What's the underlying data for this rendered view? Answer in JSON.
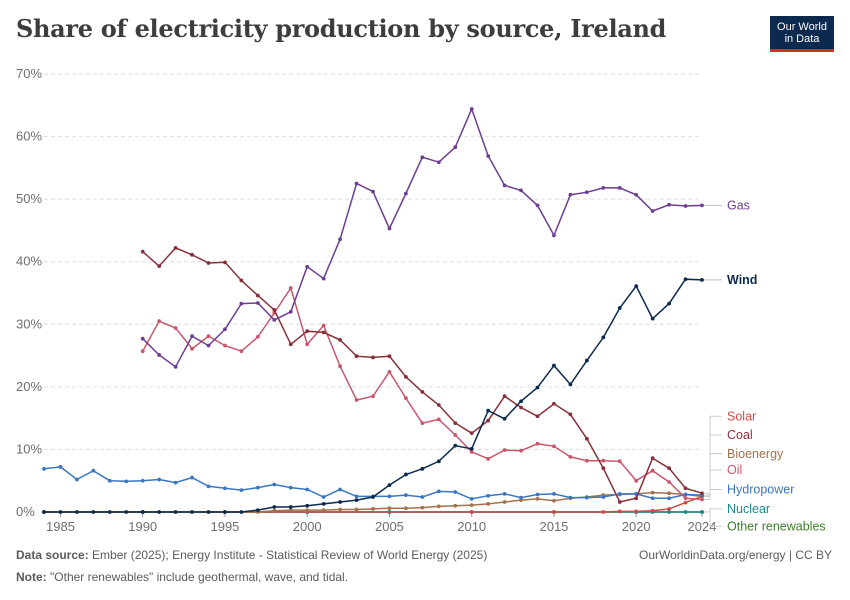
{
  "header": {
    "title": "Share of electricity production by source, Ireland",
    "logo_line1": "Our World",
    "logo_line2": "in Data"
  },
  "footer": {
    "source_label": "Data source:",
    "source_text": "Ember (2025); Energy Institute - Statistical Review of World Energy (2025)",
    "note_label": "Note:",
    "note_text": "\"Other renewables\" include geothermal, wave, and tidal.",
    "credit": "OurWorldinData.org/energy | CC BY"
  },
  "chart_data": {
    "type": "line",
    "xlim": [
      1984,
      2024
    ],
    "ylim": [
      0,
      70
    ],
    "y_ticks": [
      0,
      10,
      20,
      30,
      40,
      50,
      60,
      70
    ],
    "y_tick_labels": [
      "0%",
      "10%",
      "20%",
      "30%",
      "40%",
      "50%",
      "60%",
      "70%"
    ],
    "x_ticks": [
      1985,
      1990,
      1995,
      2000,
      2005,
      2010,
      2015,
      2020,
      2024
    ],
    "x_tick_labels": [
      "1985",
      "1990",
      "1995",
      "2000",
      "2005",
      "2010",
      "2015",
      "2020",
      "2024"
    ],
    "grid": "horizontal dashed",
    "series": [
      {
        "name": "Gas",
        "color": "#6d3e91",
        "label_y": 49,
        "bold": false,
        "x": [
          1990,
          1991,
          1992,
          1993,
          1994,
          1995,
          1996,
          1997,
          1998,
          1999,
          2000,
          2001,
          2002,
          2003,
          2004,
          2005,
          2006,
          2007,
          2008,
          2009,
          2010,
          2011,
          2012,
          2013,
          2014,
          2015,
          2016,
          2017,
          2018,
          2019,
          2020,
          2021,
          2022,
          2023,
          2024
        ],
        "y": [
          27.7,
          25.1,
          23.2,
          28.1,
          26.6,
          29.2,
          33.3,
          33.4,
          30.7,
          32.0,
          39.2,
          37.3,
          43.6,
          52.5,
          51.2,
          45.3,
          50.9,
          56.7,
          55.9,
          58.3,
          64.4,
          56.9,
          52.2,
          51.4,
          49.0,
          44.2,
          50.7,
          51.1,
          51.8,
          51.8,
          50.7,
          48.1,
          49.1,
          48.9,
          49.0
        ]
      },
      {
        "name": "Wind",
        "color": "#0c2a4e",
        "label_y": 37.1,
        "bold": true,
        "x": [
          1984,
          1985,
          1986,
          1987,
          1988,
          1989,
          1990,
          1991,
          1992,
          1993,
          1994,
          1995,
          1996,
          1997,
          1998,
          1999,
          2000,
          2001,
          2002,
          2003,
          2004,
          2005,
          2006,
          2007,
          2008,
          2009,
          2010,
          2011,
          2012,
          2013,
          2014,
          2015,
          2016,
          2017,
          2018,
          2019,
          2020,
          2021,
          2022,
          2023,
          2024
        ],
        "y": [
          0,
          0,
          0,
          0,
          0,
          0,
          0,
          0,
          0,
          0,
          0,
          0,
          0,
          0.3,
          0.8,
          0.8,
          1.0,
          1.3,
          1.6,
          1.9,
          2.4,
          4.3,
          6.0,
          6.9,
          8.1,
          10.6,
          10.1,
          16.2,
          14.9,
          17.7,
          19.9,
          23.4,
          20.4,
          24.2,
          27.9,
          32.6,
          36.1,
          30.9,
          33.3,
          37.2,
          37.1
        ]
      },
      {
        "name": "Coal",
        "color": "#883039",
        "label_y": 12.3,
        "bold": false,
        "x": [
          1990,
          1991,
          1992,
          1993,
          1994,
          1995,
          1996,
          1997,
          1998,
          1999,
          2000,
          2001,
          2002,
          2003,
          2004,
          2005,
          2006,
          2007,
          2008,
          2009,
          2010,
          2011,
          2012,
          2013,
          2014,
          2015,
          2016,
          2017,
          2018,
          2019,
          2020,
          2021,
          2022,
          2023,
          2024
        ],
        "y": [
          41.6,
          39.3,
          42.2,
          41.1,
          39.8,
          39.9,
          37.0,
          34.6,
          32.3,
          26.8,
          28.9,
          28.7,
          27.5,
          24.9,
          24.7,
          24.9,
          21.6,
          19.2,
          17.1,
          14.2,
          12.6,
          14.6,
          18.5,
          16.7,
          15.3,
          17.3,
          15.6,
          11.7,
          7.0,
          1.6,
          2.2,
          8.6,
          7.0,
          3.8,
          3.0
        ]
      },
      {
        "name": "Oil",
        "color": "#c9576b",
        "label_y": 6.7,
        "bold": false,
        "x": [
          1990,
          1991,
          1992,
          1993,
          1994,
          1995,
          1996,
          1997,
          1998,
          1999,
          2000,
          2001,
          2002,
          2003,
          2004,
          2005,
          2006,
          2007,
          2008,
          2009,
          2010,
          2011,
          2012,
          2013,
          2014,
          2015,
          2016,
          2017,
          2018,
          2019,
          2020,
          2021,
          2022,
          2023,
          2024
        ],
        "y": [
          25.7,
          30.5,
          29.4,
          26.1,
          28.1,
          26.6,
          25.7,
          28.0,
          31.8,
          35.8,
          26.8,
          29.8,
          23.3,
          17.9,
          18.5,
          22.4,
          18.2,
          14.2,
          14.8,
          12.3,
          9.6,
          8.5,
          9.9,
          9.8,
          10.9,
          10.5,
          8.8,
          8.2,
          8.2,
          8.1,
          5.0,
          6.6,
          4.8,
          2.2,
          2.0
        ]
      },
      {
        "name": "Bioenergy",
        "color": "#a2734b",
        "label_y": 9.3,
        "bold": false,
        "x": [
          1984,
          1990,
          1995,
          1997,
          1998,
          1999,
          2000,
          2001,
          2002,
          2003,
          2004,
          2005,
          2006,
          2007,
          2008,
          2009,
          2010,
          2011,
          2012,
          2013,
          2014,
          2015,
          2016,
          2017,
          2018,
          2019,
          2020,
          2021,
          2022,
          2023,
          2024
        ],
        "y": [
          0,
          0,
          0,
          0,
          0.2,
          0.3,
          0.3,
          0.3,
          0.4,
          0.4,
          0.5,
          0.6,
          0.6,
          0.7,
          0.9,
          1.0,
          1.1,
          1.3,
          1.6,
          1.9,
          2.1,
          1.8,
          2.2,
          2.4,
          2.7,
          2.8,
          2.9,
          3.1,
          3.0,
          2.8,
          2.5
        ]
      },
      {
        "name": "Hydropower",
        "color": "#3a77c2",
        "label_y": 3.6,
        "bold": false,
        "x": [
          1984,
          1985,
          1986,
          1987,
          1988,
          1989,
          1990,
          1991,
          1992,
          1993,
          1994,
          1995,
          1996,
          1997,
          1998,
          1999,
          2000,
          2001,
          2002,
          2003,
          2004,
          2005,
          2006,
          2007,
          2008,
          2009,
          2010,
          2011,
          2012,
          2013,
          2014,
          2015,
          2016,
          2017,
          2018,
          2019,
          2020,
          2021,
          2022,
          2023,
          2024
        ],
        "y": [
          6.9,
          7.2,
          5.2,
          6.6,
          5.0,
          4.9,
          5.0,
          5.2,
          4.7,
          5.5,
          4.1,
          3.8,
          3.5,
          3.9,
          4.4,
          3.9,
          3.6,
          2.4,
          3.6,
          2.5,
          2.5,
          2.5,
          2.7,
          2.4,
          3.3,
          3.2,
          2.1,
          2.6,
          2.9,
          2.3,
          2.8,
          2.9,
          2.3,
          2.3,
          2.4,
          2.9,
          2.9,
          2.2,
          2.2,
          2.8,
          2.7
        ]
      },
      {
        "name": "Solar",
        "color": "#cf4b46",
        "label_y": 15.3,
        "bold": false,
        "x": [
          1984,
          2010,
          2015,
          2018,
          2019,
          2020,
          2021,
          2022,
          2023,
          2024
        ],
        "y": [
          0,
          0,
          0,
          0,
          0.1,
          0.1,
          0.2,
          0.5,
          1.5,
          2.5
        ]
      },
      {
        "name": "Nuclear",
        "color": "#1a8a8a",
        "label_y": 0.5,
        "bold": false,
        "x": [
          1984,
          1990,
          1995,
          2000,
          2005,
          2010,
          2015,
          2020,
          2021,
          2022,
          2023,
          2024
        ],
        "y": [
          0,
          0,
          0,
          0,
          0,
          0,
          0,
          0,
          0,
          0,
          0,
          0
        ]
      },
      {
        "name": "Other renewables",
        "color": "#3e7f2e",
        "label_y": -2.3,
        "bold": false,
        "x": [
          1984,
          1990,
          1995,
          2000,
          2005,
          2010,
          2015,
          2020,
          2024
        ],
        "y": [
          0,
          0,
          0,
          0,
          0,
          0,
          0,
          0,
          0
        ]
      }
    ]
  }
}
